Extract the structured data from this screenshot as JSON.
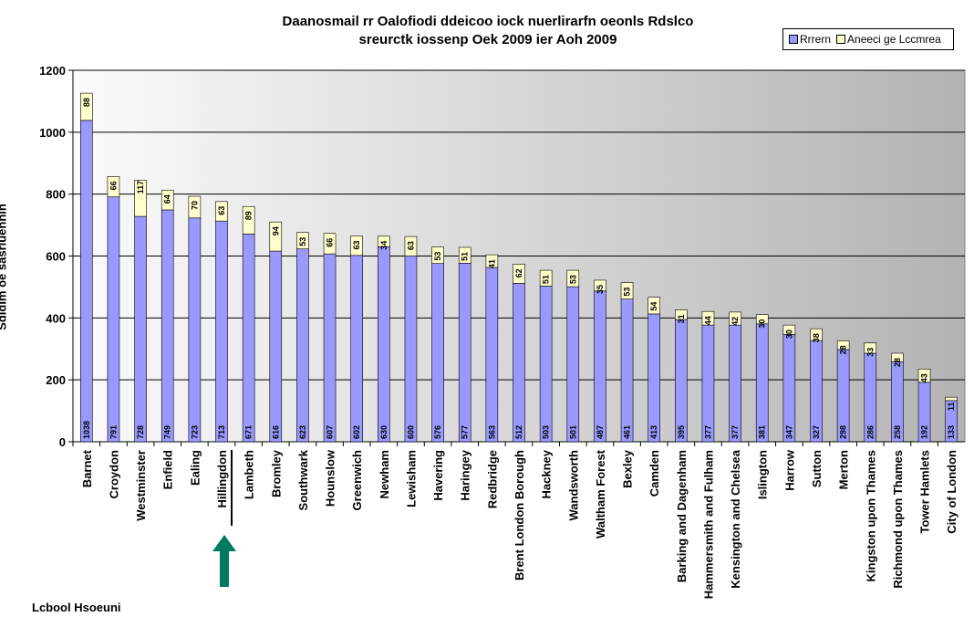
{
  "chart_data": {
    "type": "bar",
    "stacked": true,
    "title": [
      "Daanosmail rr Oalofiodi ddeicoo iock nuerlirarfn oeonls Rdslco",
      "sreurctk iossenp Oek 2009 ier Aoh 2009"
    ],
    "ylabel": "Sdidim oe sasrluehhln",
    "xlabel": "Lcbool Hsoeuni",
    "ylim": [
      0,
      1200
    ],
    "yticks": [
      "0",
      "200",
      "400",
      "600",
      "800",
      "1000",
      "1200"
    ],
    "legend_position": "top-right",
    "grid": true,
    "categories": [
      "Barnet",
      "Croydon",
      "Westminster",
      "Enfield",
      "Ealing",
      "Hillingdon",
      "Lambeth",
      "Bromley",
      "Southwark",
      "Hounslow",
      "Greenwich",
      "Newham",
      "Lewisham",
      "Havering",
      "Haringey",
      "Redbridge",
      "Brent London Borough",
      "Hackney",
      "Wandsworth",
      "Waltham Forest",
      "Bexley",
      "Camden",
      "Barking and Dagenham",
      "Hammersmith and Fulham",
      "Kensington and Chelsea",
      "Islington",
      "Harrow",
      "Sutton",
      "Merton",
      "Kingston upon Thames",
      "Richmond upon Thames",
      "Tower Hamlets",
      "City of London"
    ],
    "series": [
      {
        "name": "Rrrern",
        "color": "#9999ff",
        "values": [
          1038,
          791,
          728,
          749,
          723,
          713,
          671,
          616,
          623,
          607,
          602,
          630,
          600,
          576,
          577,
          563,
          512,
          503,
          501,
          487,
          461,
          413,
          395,
          377,
          377,
          381,
          347,
          327,
          298,
          286,
          258,
          192,
          133
        ]
      },
      {
        "name": "Aneeci ge Lccmrea",
        "color": "#ffffcc",
        "values": [
          88,
          66,
          117,
          64,
          70,
          63,
          89,
          94,
          53,
          66,
          63,
          34,
          63,
          53,
          51,
          41,
          62,
          51,
          53,
          35,
          53,
          54,
          31,
          44,
          42,
          30,
          30,
          38,
          28,
          33,
          28,
          43,
          11
        ]
      }
    ],
    "highlighted_category": "Hillingdon",
    "highlight_marker": "arrow-up",
    "highlight_color": "#007a5e"
  }
}
